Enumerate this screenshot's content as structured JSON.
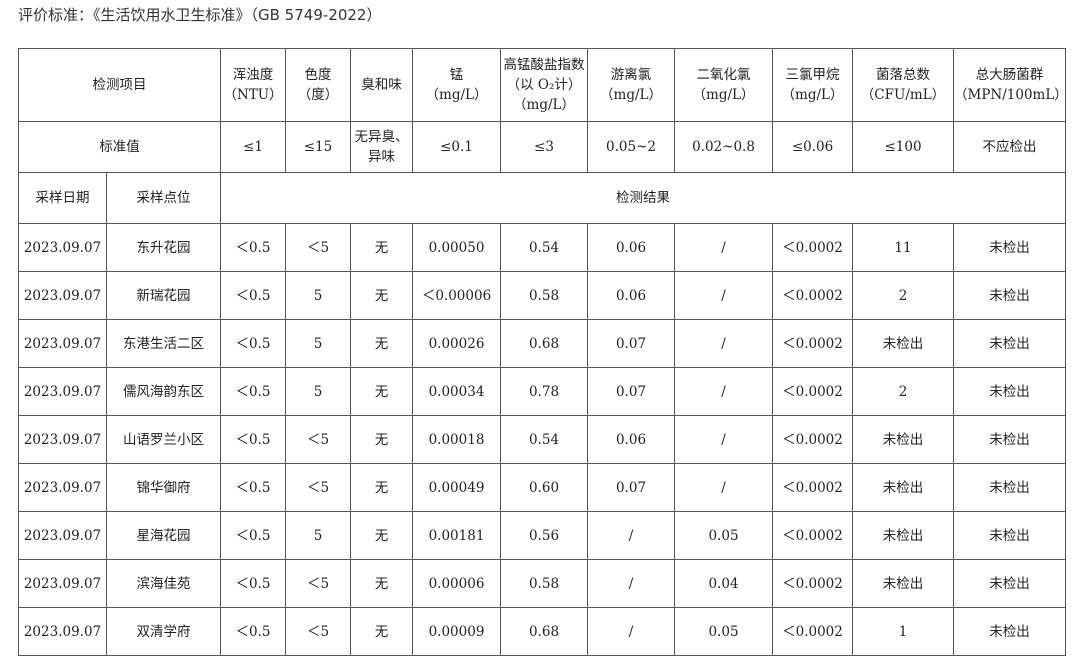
{
  "caption": "评价标准：《生活饮用水卫生标准》（GB 5749-2022）",
  "header": {
    "item_label": "检测项目",
    "columns": [
      {
        "name": "浑浊度",
        "unit": "（NTU）"
      },
      {
        "name": "色度",
        "unit": "（度）"
      },
      {
        "name": "臭和味",
        "unit": ""
      },
      {
        "name": "锰",
        "unit": "（mg/L）"
      },
      {
        "name": "高锰酸盐指数（以 O₂计）",
        "unit": "（mg/L）"
      },
      {
        "name": "游离氯",
        "unit": "（mg/L）"
      },
      {
        "name": "二氧化氯",
        "unit": "（mg/L）"
      },
      {
        "name": "三氯甲烷",
        "unit": "（mg/L）"
      },
      {
        "name": "菌落总数",
        "unit": "（CFU/mL）"
      },
      {
        "name": "总大肠菌群",
        "unit": "（MPN/100mL）"
      }
    ]
  },
  "standard": {
    "label": "标准值",
    "values": [
      "≤1",
      "≤15",
      "无异臭、异味",
      "≤0.1",
      "≤3",
      "0.05~2",
      "0.02~0.8",
      "≤0.06",
      "≤100",
      "不应检出"
    ]
  },
  "subheader": {
    "date": "采样日期",
    "site": "采样点位",
    "results": "检测结果"
  },
  "rows": [
    {
      "date": "2023.09.07",
      "site": "东升花园",
      "values": [
        "＜0.5",
        "＜5",
        "无",
        "0.00050",
        "0.54",
        "0.06",
        "/",
        "＜0.0002",
        "11",
        "未检出"
      ]
    },
    {
      "date": "2023.09.07",
      "site": "新瑞花园",
      "values": [
        "＜0.5",
        "5",
        "无",
        "＜0.00006",
        "0.58",
        "0.06",
        "/",
        "＜0.0002",
        "2",
        "未检出"
      ]
    },
    {
      "date": "2023.09.07",
      "site": "东港生活二区",
      "values": [
        "＜0.5",
        "5",
        "无",
        "0.00026",
        "0.68",
        "0.07",
        "/",
        "＜0.0002",
        "未检出",
        "未检出"
      ]
    },
    {
      "date": "2023.09.07",
      "site": "儒风海韵东区",
      "values": [
        "＜0.5",
        "5",
        "无",
        "0.00034",
        "0.78",
        "0.07",
        "/",
        "＜0.0002",
        "2",
        "未检出"
      ]
    },
    {
      "date": "2023.09.07",
      "site": "山语罗兰小区",
      "values": [
        "＜0.5",
        "＜5",
        "无",
        "0.00018",
        "0.54",
        "0.06",
        "/",
        "＜0.0002",
        "未检出",
        "未检出"
      ]
    },
    {
      "date": "2023.09.07",
      "site": "锦华御府",
      "values": [
        "＜0.5",
        "＜5",
        "无",
        "0.00049",
        "0.60",
        "0.07",
        "/",
        "＜0.0002",
        "未检出",
        "未检出"
      ]
    },
    {
      "date": "2023.09.07",
      "site": "星海花园",
      "values": [
        "＜0.5",
        "5",
        "无",
        "0.00181",
        "0.56",
        "/",
        "0.05",
        "＜0.0002",
        "未检出",
        "未检出"
      ]
    },
    {
      "date": "2023.09.07",
      "site": "滨海佳苑",
      "values": [
        "＜0.5",
        "＜5",
        "无",
        "0.00006",
        "0.58",
        "/",
        "0.04",
        "＜0.0002",
        "未检出",
        "未检出"
      ]
    },
    {
      "date": "2023.09.07",
      "site": "双清学府",
      "values": [
        "＜0.5",
        "＜5",
        "无",
        "0.00009",
        "0.68",
        "/",
        "0.05",
        "＜0.0002",
        "1",
        "未检出"
      ]
    }
  ]
}
